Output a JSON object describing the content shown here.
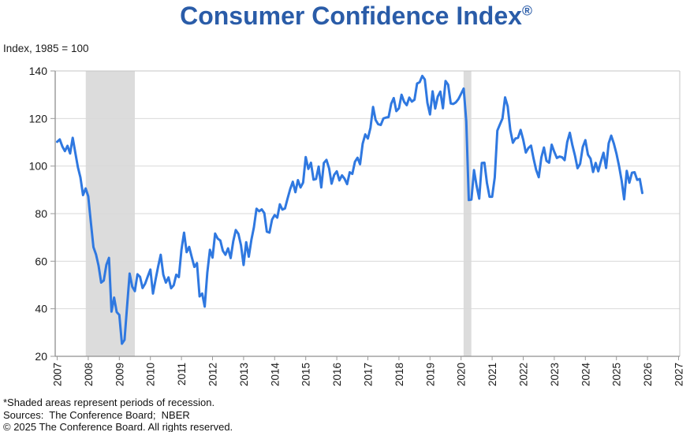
{
  "title": {
    "text": "Consumer Confidence Index",
    "registered_mark": "®"
  },
  "axis_note": "Index, 1985 = 100",
  "footnotes": [
    "*Shaded areas represent periods of recession.",
    "Sources:  The Conference Board;  NBER",
    "© 2025 The Conference Board. All rights reserved."
  ],
  "colors": {
    "title": "#2a5ca8",
    "line": "#2f78e0",
    "recession_band": "#dcdcdc",
    "gridline": "#d9d9d9",
    "plot_border": "#c6c6c6",
    "axis": "#8f8f8f",
    "tick": "#9a9a9a",
    "tick_label": "#1a1a1a"
  },
  "chart_data": {
    "type": "line",
    "title": "Consumer Confidence Index®",
    "subtitle": "Index, 1985 = 100",
    "xlabel": "",
    "ylabel": "Index, 1985 = 100",
    "ylim": [
      20,
      140
    ],
    "y_ticks": [
      20,
      40,
      60,
      80,
      100,
      120,
      140
    ],
    "x_ticks": [
      2007,
      2008,
      2009,
      2010,
      2011,
      2012,
      2013,
      2014,
      2015,
      2016,
      2017,
      2018,
      2019,
      2020,
      2021,
      2022,
      2023,
      2024,
      2025,
      2026,
      2027
    ],
    "grid": "horizontal",
    "legend": "none",
    "frequency": "monthly",
    "start_year": 2007,
    "start_month": 1,
    "recessions": [
      {
        "start": 2007.92,
        "end": 2009.5
      },
      {
        "start": 2020.08,
        "end": 2020.33
      }
    ],
    "series": [
      {
        "name": "Consumer Confidence Index",
        "values": [
          110.2,
          111.2,
          108.2,
          106.3,
          108.5,
          105.3,
          111.9,
          105.6,
          99.5,
          95.2,
          87.8,
          90.6,
          87.3,
          76.4,
          65.9,
          62.8,
          58.1,
          51.0,
          51.9,
          58.5,
          61.4,
          38.8,
          44.7,
          38.6,
          37.4,
          25.3,
          26.9,
          40.8,
          54.8,
          49.3,
          47.4,
          54.5,
          53.4,
          48.7,
          50.6,
          53.6,
          56.5,
          46.4,
          52.3,
          57.7,
          62.7,
          54.3,
          51.0,
          53.2,
          48.6,
          49.9,
          54.3,
          53.3,
          64.8,
          72.0,
          63.8,
          66.0,
          61.7,
          57.6,
          59.2,
          45.2,
          46.4,
          40.9,
          55.2,
          64.8,
          61.5,
          71.6,
          69.5,
          68.7,
          64.4,
          62.7,
          65.4,
          61.3,
          68.4,
          73.1,
          71.5,
          66.7,
          58.4,
          68.0,
          61.9,
          69.0,
          74.3,
          82.1,
          81.0,
          81.8,
          80.2,
          72.4,
          72.0,
          77.5,
          79.4,
          78.3,
          83.9,
          81.7,
          82.2,
          86.4,
          90.3,
          93.4,
          89.0,
          94.1,
          91.0,
          93.1,
          103.8,
          98.8,
          101.4,
          94.3,
          94.6,
          99.8,
          91.0,
          101.3,
          102.6,
          99.1,
          92.6,
          96.3,
          97.8,
          94.0,
          96.1,
          94.7,
          92.4,
          97.4,
          96.7,
          101.8,
          103.5,
          100.8,
          109.4,
          113.3,
          111.6,
          116.1,
          124.9,
          119.4,
          117.6,
          117.3,
          120.0,
          120.4,
          120.6,
          126.2,
          128.6,
          123.1,
          124.3,
          130.0,
          127.0,
          125.6,
          128.8,
          127.1,
          127.9,
          134.7,
          135.3,
          137.9,
          136.4,
          126.6,
          121.7,
          131.4,
          124.2,
          129.2,
          131.3,
          124.3,
          135.8,
          134.2,
          126.3,
          126.1,
          126.8,
          128.2,
          130.4,
          132.6,
          118.8,
          85.7,
          85.9,
          98.3,
          91.7,
          86.3,
          101.3,
          101.4,
          92.9,
          87.1,
          87.1,
          95.2,
          114.9,
          117.5,
          120.0,
          128.9,
          125.1,
          115.2,
          109.8,
          111.6,
          111.9,
          115.2,
          111.1,
          105.7,
          107.6,
          108.6,
          103.2,
          98.4,
          95.3,
          103.6,
          107.8,
          102.2,
          101.4,
          109.0,
          106.0,
          103.4,
          104.0,
          103.7,
          102.5,
          110.1,
          114.0,
          108.7,
          104.3,
          99.1,
          101.0,
          108.0,
          110.9,
          104.8,
          103.1,
          97.5,
          101.3,
          97.8,
          101.9,
          105.6,
          99.2,
          109.6,
          112.8,
          109.5,
          105.3,
          100.1,
          93.9,
          86.0,
          98.0,
          93.0,
          97.2,
          97.4,
          94.2,
          94.6,
          88.7
        ]
      }
    ]
  }
}
